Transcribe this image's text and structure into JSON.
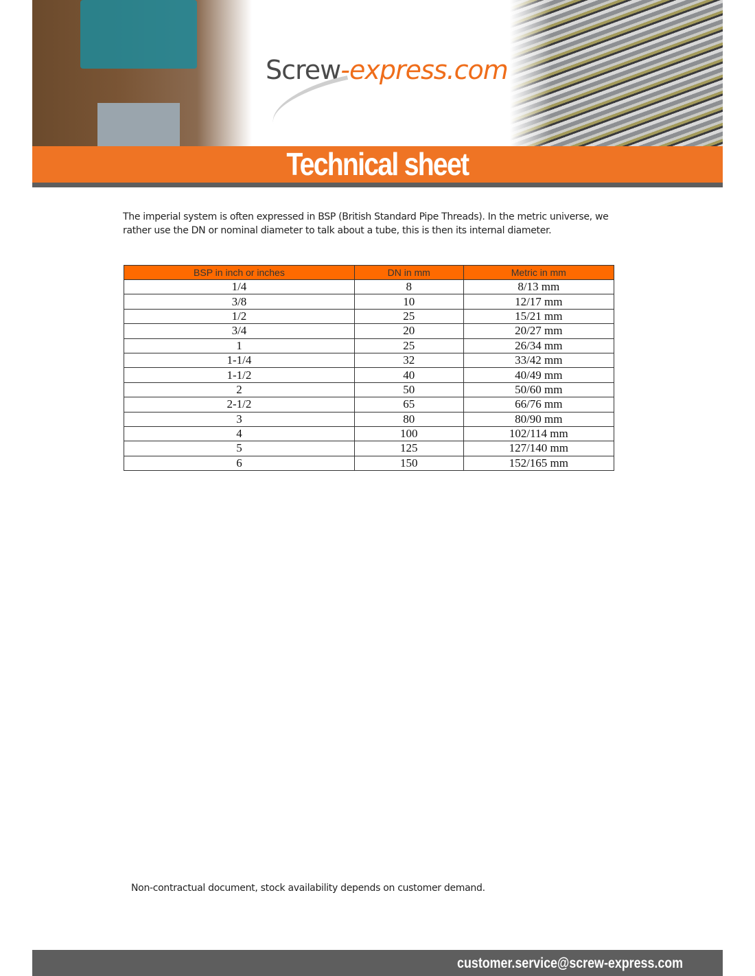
{
  "header": {
    "logo_primary": "Screw",
    "logo_secondary": "-express.com",
    "title": "Technical sheet",
    "brand_color": "#ef7424"
  },
  "intro": "The imperial system is often expressed in BSP (British Standard Pipe Threads). In the metric universe, we rather use the DN or nominal diameter to talk about a tube, this is then its internal diameter.",
  "table": {
    "headers": [
      "BSP in inch or inches",
      "DN in mm",
      "Metric in mm"
    ],
    "rows": [
      [
        "1/4",
        "8",
        "8/13 mm"
      ],
      [
        "3/8",
        "10",
        "12/17 mm"
      ],
      [
        "1/2",
        "25",
        "15/21 mm"
      ],
      [
        "3/4",
        "20",
        "20/27 mm"
      ],
      [
        "1",
        "25",
        "26/34 mm"
      ],
      [
        "1-1/4",
        "32",
        "33/42 mm"
      ],
      [
        "1-1/2",
        "40",
        "40/49 mm"
      ],
      [
        "2",
        "50",
        "50/60 mm"
      ],
      [
        "2-1/2",
        "65",
        "66/76 mm"
      ],
      [
        "3",
        "80",
        "80/90 mm"
      ],
      [
        "4",
        "100",
        "102/114 mm"
      ],
      [
        "5",
        "125",
        "127/140 mm"
      ],
      [
        "6",
        "150",
        "152/165 mm"
      ]
    ]
  },
  "note": "Non-contractual document, stock availability depends on customer demand.",
  "footer": {
    "email": "customer.service@screw-express.com"
  }
}
